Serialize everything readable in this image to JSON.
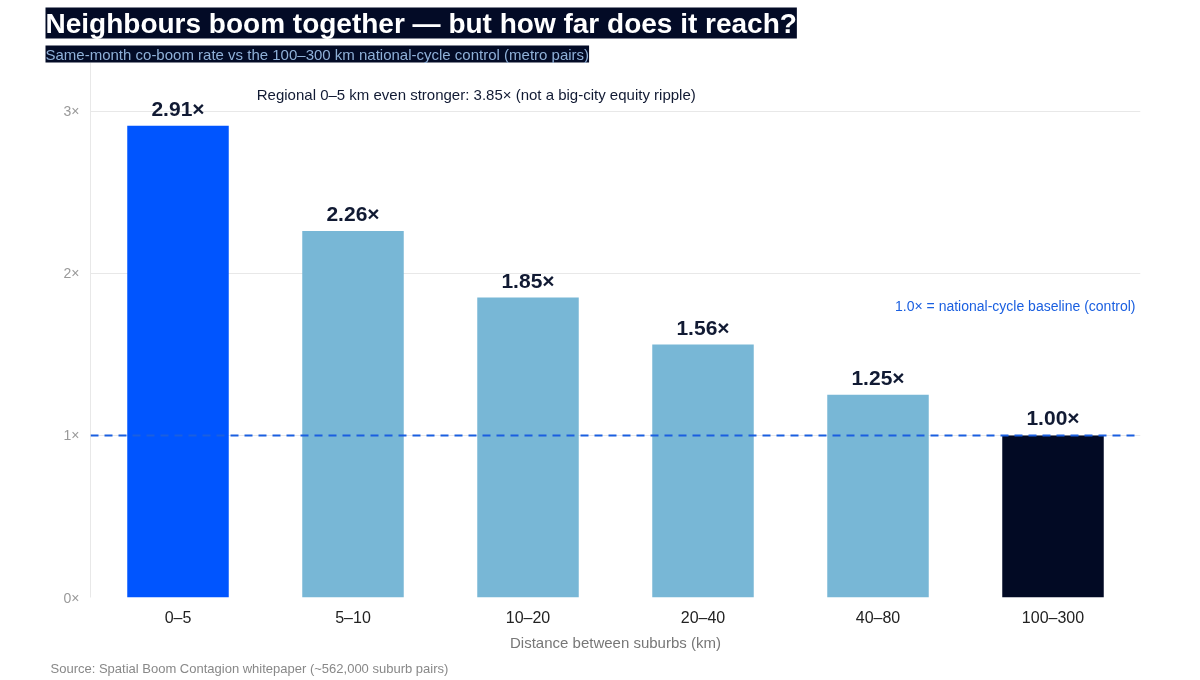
{
  "chart_data": {
    "type": "bar",
    "title": "Neighbours boom together — but how far does it reach?",
    "subtitle": "Same-month co-boom rate vs the 100–300 km national-cycle control (metro pairs)",
    "xlabel": "Distance between suburbs (km)",
    "categories": [
      "0–5",
      "5–10",
      "10–20",
      "20–40",
      "40–80",
      "100–300"
    ],
    "values": [
      2.91,
      2.26,
      1.85,
      1.56,
      1.25,
      1.0
    ],
    "colors": [
      "#0055ff",
      "#78b7d6",
      "#78b7d6",
      "#78b7d6",
      "#78b7d6",
      "#020a24"
    ],
    "value_labels": [
      "2.91×",
      "2.26×",
      "1.85×",
      "1.56×",
      "1.25×",
      "1.00×"
    ],
    "ylim": [
      0,
      3.3
    ],
    "yticks": [
      {
        "value": 0,
        "label": "0×"
      },
      {
        "value": 1,
        "label": "1×"
      },
      {
        "value": 2,
        "label": "2×"
      },
      {
        "value": 3,
        "label": "3×"
      }
    ],
    "grid": "y",
    "ref_lines": [
      {
        "axis": "y",
        "value": 1,
        "label": "1.0× = national-cycle baseline (control)",
        "color": "#1a5fe0",
        "line_style": "dashed"
      }
    ],
    "annotations": [
      "Regional 0–5 km even stronger: 3.85× (not a big-city equity ripple)",
      "Source: Spatial Boom Contagion whitepaper (~562,000 suburb pairs)"
    ]
  }
}
